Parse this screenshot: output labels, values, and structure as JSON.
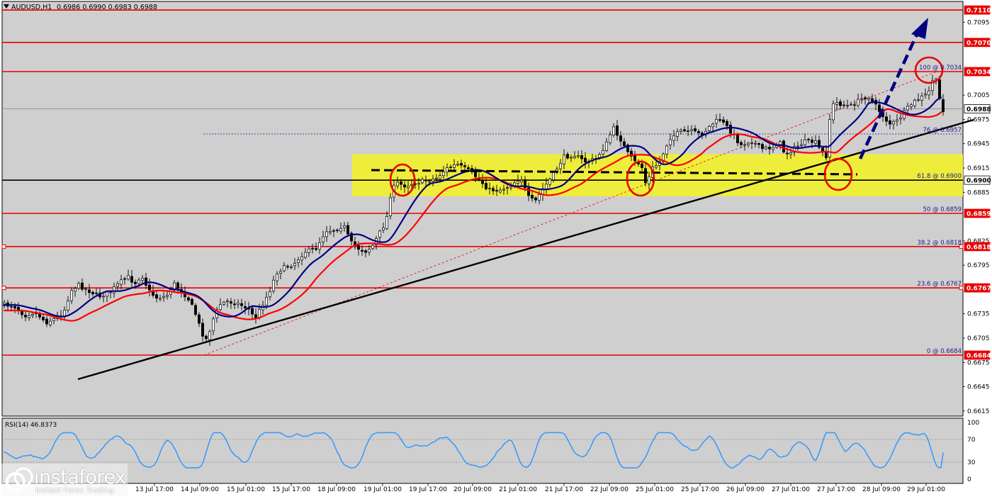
{
  "header": {
    "symbol": "AUDUSD,H1",
    "ohlc": "0.6986 0.6990 0.6983 0.6988"
  },
  "colors": {
    "background": "#cfcfcf",
    "level_line": "#e80000",
    "ma_fast": "#ff0000",
    "ma_slow": "#000080",
    "trendline": "#000000",
    "zone": "#f0ee33",
    "rsi_line": "#3399ff",
    "candles": "#000000"
  },
  "chart_data": {
    "type": "candlestick",
    "title": "AUDUSD,H1",
    "y_range": [
      0.661,
      0.712
    ],
    "price_ticks": [
      0.7095,
      0.7005,
      0.6975,
      0.6945,
      0.6915,
      0.6885,
      0.6825,
      0.6795,
      0.6735,
      0.6705,
      0.6675,
      0.6645,
      0.6615
    ],
    "highlighted_levels": [
      {
        "price": 0.711,
        "label": "0.7110",
        "style": "red-line"
      },
      {
        "price": 0.707,
        "label": "0.7070",
        "style": "red-line"
      },
      {
        "price": 0.7034,
        "label": "0.7034",
        "style": "red-line"
      },
      {
        "price": 0.6988,
        "label": "0.6988",
        "style": "current-price"
      },
      {
        "price": 0.69,
        "label": "0.6900",
        "style": "black-line"
      },
      {
        "price": 0.6859,
        "label": "0.6859",
        "style": "red-line"
      },
      {
        "price": 0.6818,
        "label": "0.6818",
        "style": "red-line"
      },
      {
        "price": 0.6767,
        "label": "0.6767",
        "style": "red-line"
      },
      {
        "price": 0.6684,
        "label": "0.6684",
        "style": "red-line"
      }
    ],
    "fibonacci": [
      {
        "text": "100 @ 0.7034",
        "price": 0.7034
      },
      {
        "text": "76 @ 0.6957",
        "price": 0.6957
      },
      {
        "text": "61.8 @ 0.6900",
        "price": 0.69
      },
      {
        "text": "50 @ 0.6859",
        "price": 0.6859
      },
      {
        "text": "38.2 @ 0.6818",
        "price": 0.6818
      },
      {
        "text": "23.6 @ 0.6767",
        "price": 0.6767
      },
      {
        "text": "0 @ 0.6684",
        "price": 0.6684
      }
    ],
    "support_zone": [
      0.688,
      0.6932
    ],
    "time_labels": [
      "13 Jul 17:00",
      "14 Jul 09:00",
      "15 Jul 01:00",
      "15 Jul 17:00",
      "18 Jul 09:00",
      "19 Jul 01:00",
      "19 Jul 17:00",
      "20 Jul 09:00",
      "21 Jul 01:00",
      "21 Jul 17:00",
      "22 Jul 09:00",
      "25 Jul 01:00",
      "25 Jul 17:00",
      "26 Jul 09:00",
      "27 Jul 01:00",
      "27 Jul 17:00",
      "28 Jul 09:00",
      "29 Jul 01:00"
    ],
    "rsi": {
      "label": "RSI(14) 46.8373",
      "levels": [
        100,
        70,
        30,
        0
      ],
      "current": 46.8373
    }
  },
  "brand": {
    "name": "instaforex",
    "tagline": "Instant Forex Trading"
  }
}
